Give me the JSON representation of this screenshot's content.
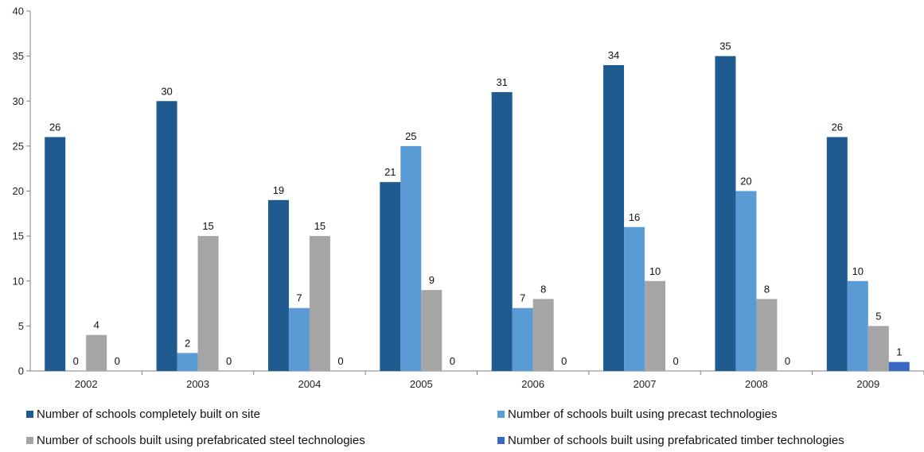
{
  "chart_data": {
    "type": "bar",
    "categories": [
      "2002",
      "2003",
      "2004",
      "2005",
      "2006",
      "2007",
      "2008",
      "2009"
    ],
    "ylim": [
      0,
      40
    ],
    "yticks": [
      0,
      5,
      10,
      15,
      20,
      25,
      30,
      35,
      40
    ],
    "grid": false,
    "legend_position": "bottom",
    "series": [
      {
        "name": "Number of schools completely built on site",
        "color": "#1f5b8e",
        "values": [
          26,
          30,
          19,
          21,
          31,
          34,
          35,
          26
        ]
      },
      {
        "name": "Number of schools built using precast technologies",
        "color": "#5b9bd5",
        "values": [
          0,
          2,
          7,
          25,
          7,
          16,
          20,
          10
        ]
      },
      {
        "name": "Number of schools built using prefabricated steel technologies",
        "color": "#a5a5a5",
        "values": [
          4,
          15,
          15,
          9,
          8,
          10,
          8,
          5
        ]
      },
      {
        "name": "Number of schools built using prefabricated timber technologies",
        "color": "#3a66c4",
        "values": [
          0,
          0,
          0,
          0,
          0,
          0,
          0,
          1
        ]
      }
    ]
  }
}
